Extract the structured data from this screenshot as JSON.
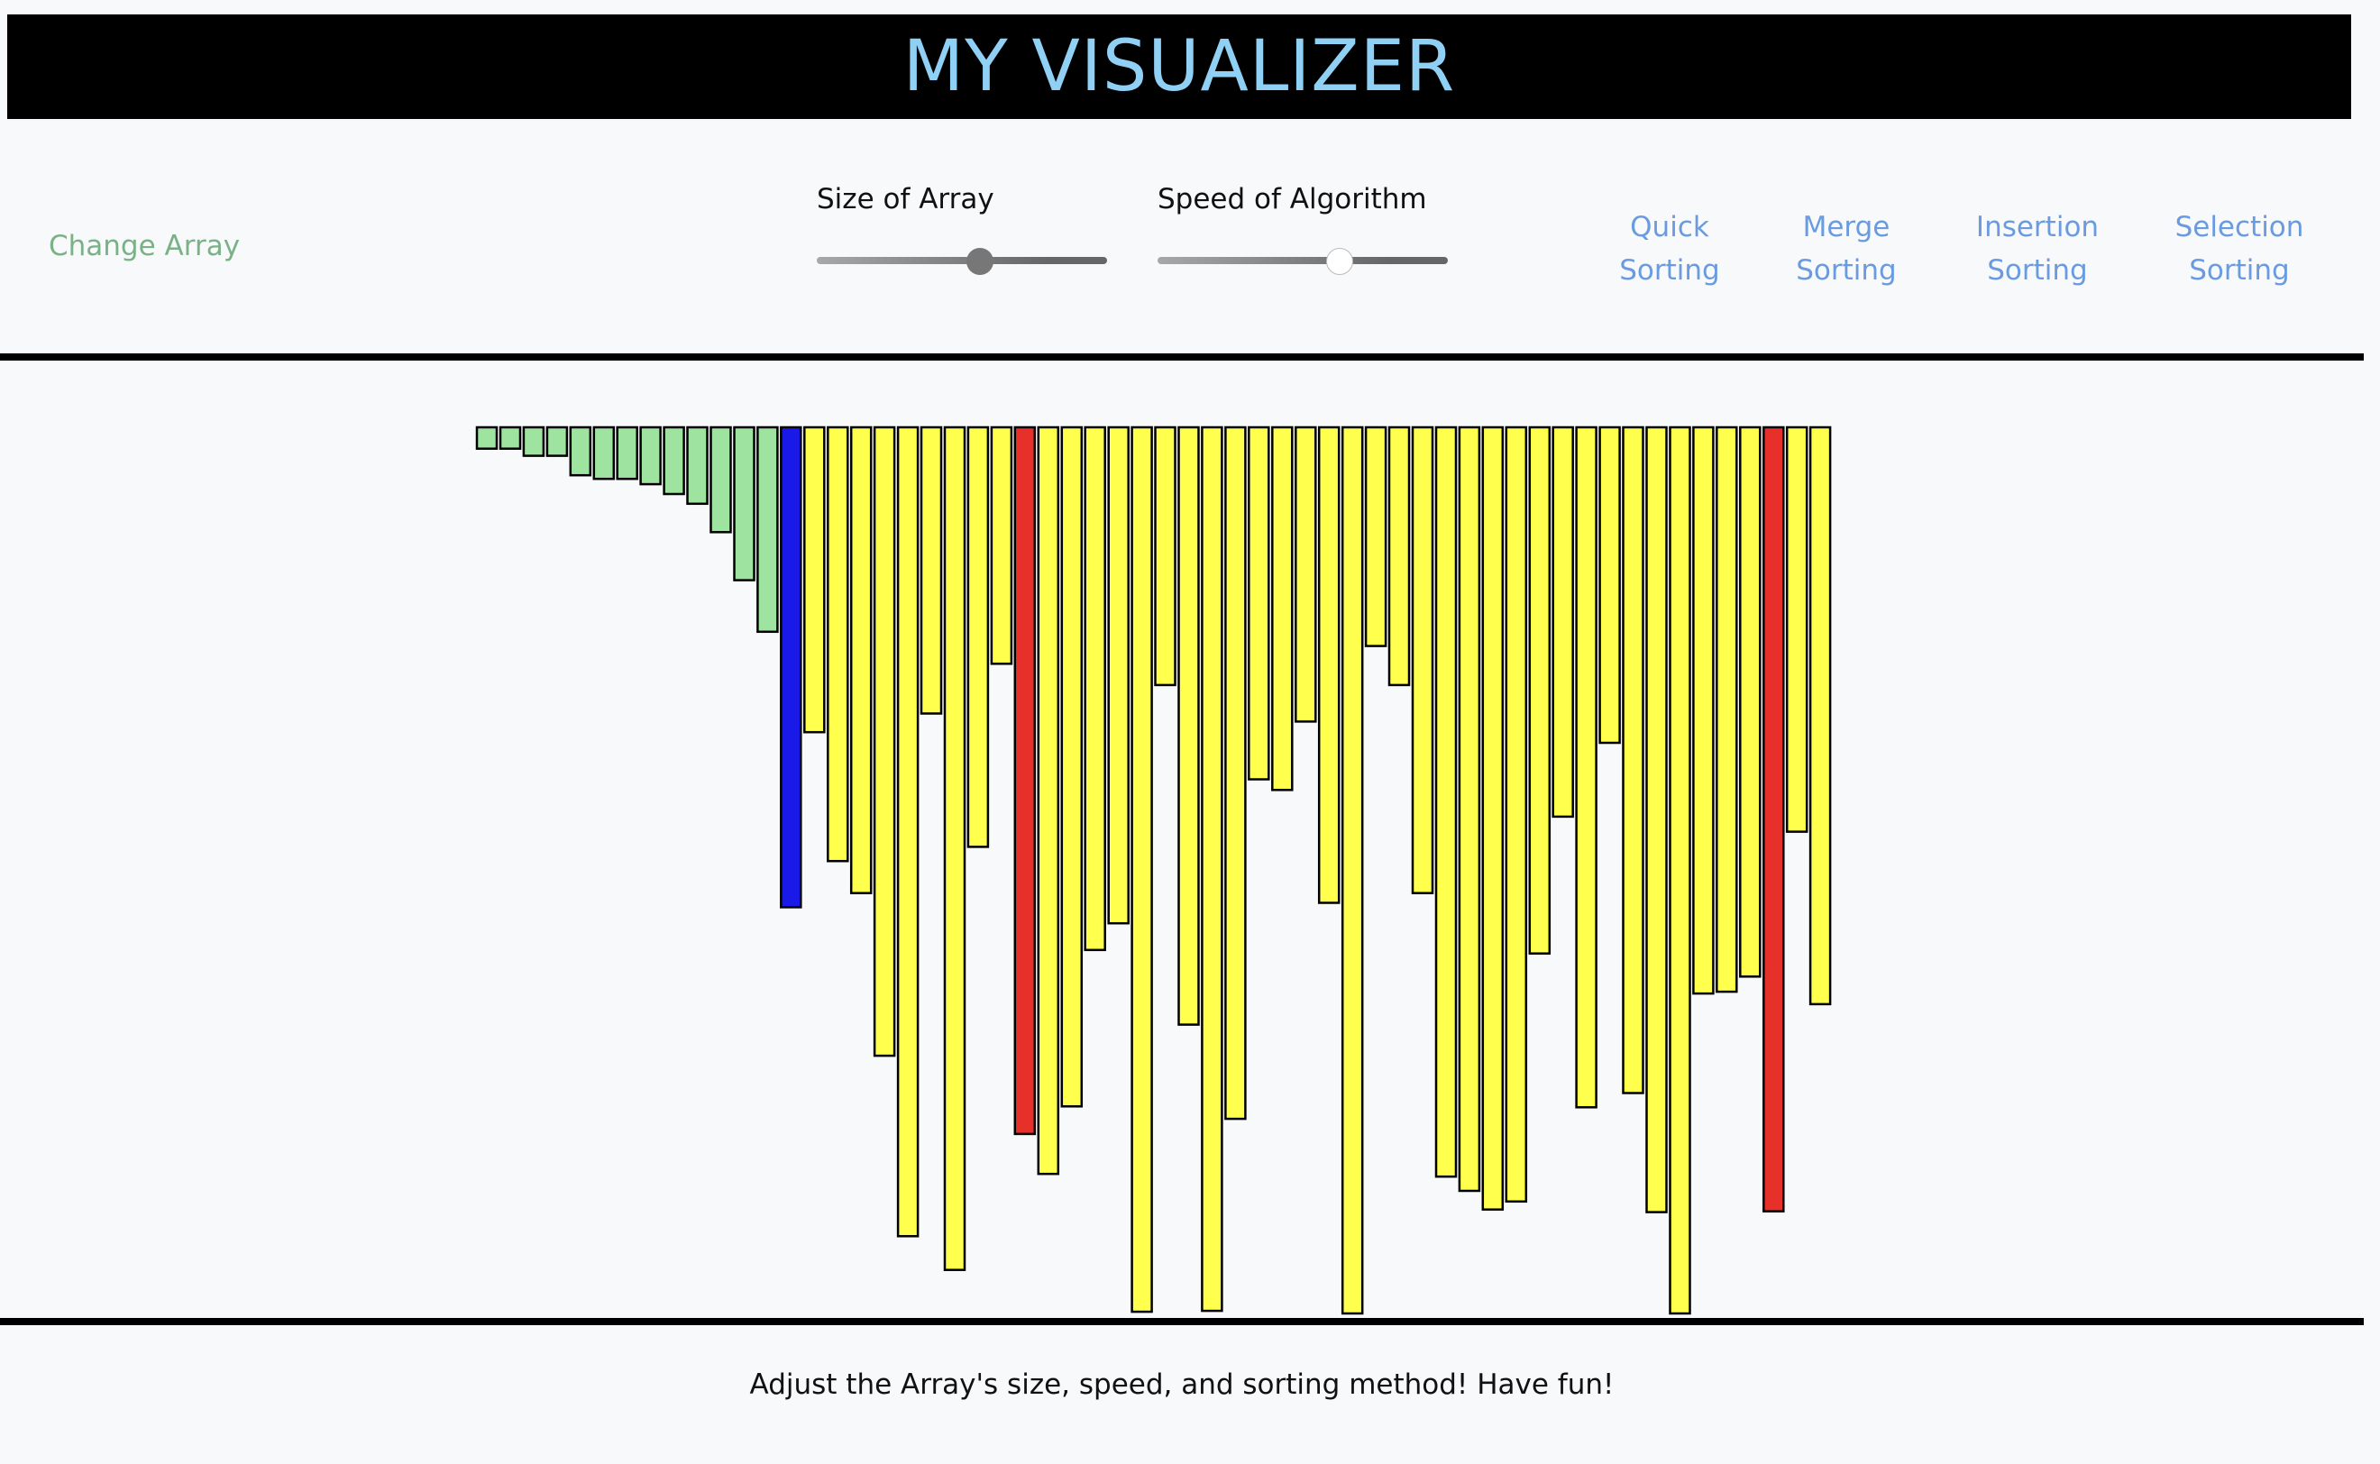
{
  "header": {
    "title": "MY VISUALIZER"
  },
  "controls": {
    "change_array_label": "Change Array",
    "size": {
      "label": "Size of Array",
      "value": 0.57
    },
    "speed": {
      "label": "Speed of Algorithm",
      "value": 0.64
    }
  },
  "sort_buttons": [
    {
      "line1": "Quick",
      "line2": "Sorting"
    },
    {
      "line1": "Merge",
      "line2": "Sorting"
    },
    {
      "line1": "Insertion",
      "line2": "Sorting"
    },
    {
      "line1": "Selection",
      "line2": "Sorting"
    }
  ],
  "footer": {
    "text": "Adjust the Array's size, speed, and sorting method! Have fun!"
  },
  "colors": {
    "sorted": "#9fe3a0",
    "unsorted": "#ffff4d",
    "comparing": "#e8302a",
    "pivot": "#1a1ae8"
  },
  "array": {
    "values": [
      24,
      24,
      32,
      32,
      54,
      58,
      58,
      64,
      75,
      86,
      118,
      172,
      230,
      540,
      343,
      488,
      524,
      707,
      910,
      322,
      948,
      472,
      266,
      795,
      840,
      764,
      588,
      558,
      995,
      290,
      672,
      994,
      778,
      396,
      408,
      331,
      535,
      997,
      246,
      290,
      524,
      843,
      859,
      880,
      871,
      592,
      438,
      765,
      355,
      749,
      883,
      997,
      637,
      635,
      618,
      882,
      455,
      649
    ],
    "states": [
      "sorted",
      "sorted",
      "sorted",
      "sorted",
      "sorted",
      "sorted",
      "sorted",
      "sorted",
      "sorted",
      "sorted",
      "sorted",
      "sorted",
      "sorted",
      "pivot",
      "unsorted",
      "unsorted",
      "unsorted",
      "unsorted",
      "unsorted",
      "unsorted",
      "unsorted",
      "unsorted",
      "unsorted",
      "comparing",
      "unsorted",
      "unsorted",
      "unsorted",
      "unsorted",
      "unsorted",
      "unsorted",
      "unsorted",
      "unsorted",
      "unsorted",
      "unsorted",
      "unsorted",
      "unsorted",
      "unsorted",
      "unsorted",
      "unsorted",
      "unsorted",
      "unsorted",
      "unsorted",
      "unsorted",
      "unsorted",
      "unsorted",
      "unsorted",
      "unsorted",
      "unsorted",
      "unsorted",
      "unsorted",
      "unsorted",
      "unsorted",
      "unsorted",
      "unsorted",
      "unsorted",
      "comparing",
      "unsorted",
      "unsorted"
    ]
  }
}
